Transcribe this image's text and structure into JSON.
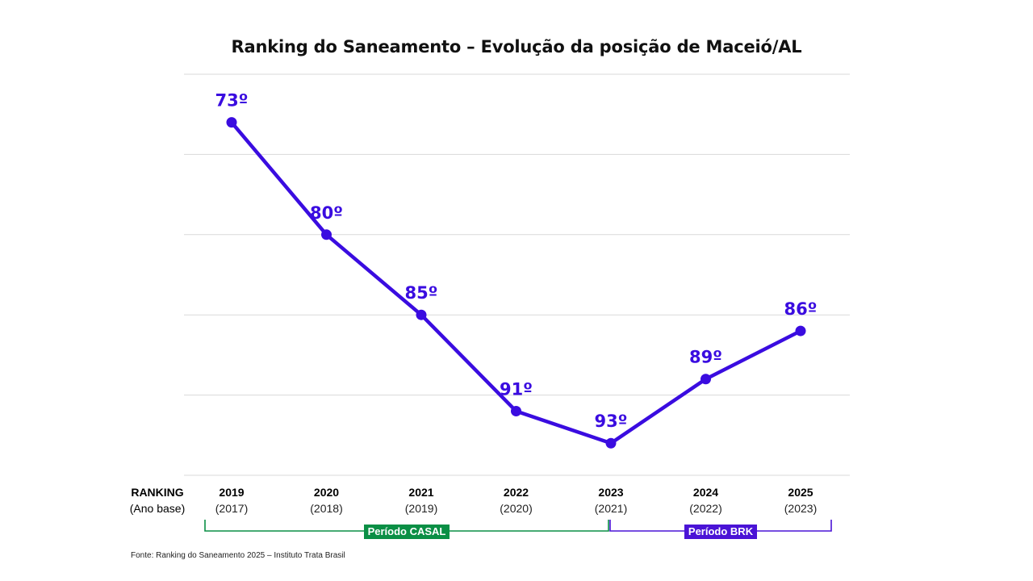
{
  "colors": {
    "series": "#3A0CE0",
    "casal": "#0A8F45",
    "brk": "#4A13D6",
    "grid": "#d9d9d9"
  },
  "chart_data": {
    "type": "line",
    "title": "Ranking do Saneamento – Evolução da posição de Maceió/AL",
    "row_header": {
      "label": "RANKING",
      "sublabel": "(Ano base)"
    },
    "categories": [
      "2019",
      "2020",
      "2021",
      "2022",
      "2023",
      "2024",
      "2025"
    ],
    "base_years": [
      "(2017)",
      "(2018)",
      "(2019)",
      "(2020)",
      "(2021)",
      "(2022)",
      "(2023)"
    ],
    "values": [
      73,
      80,
      85,
      91,
      93,
      89,
      86
    ],
    "data_labels": [
      "73º",
      "80º",
      "85º",
      "91º",
      "93º",
      "89º",
      "86º"
    ],
    "y_axis": {
      "inverted": true,
      "ylim": [
        70,
        95
      ],
      "show_tick_labels": false
    },
    "grid": true,
    "periods": [
      {
        "label": "Período CASAL",
        "start_index": 0,
        "end_index": 4,
        "color_key": "casal"
      },
      {
        "label": "Período BRK",
        "start_index": 4,
        "end_index": 6,
        "color_key": "brk"
      }
    ],
    "source": "Fonte: Ranking do Saneamento 2025 – Instituto Trata Brasil"
  }
}
